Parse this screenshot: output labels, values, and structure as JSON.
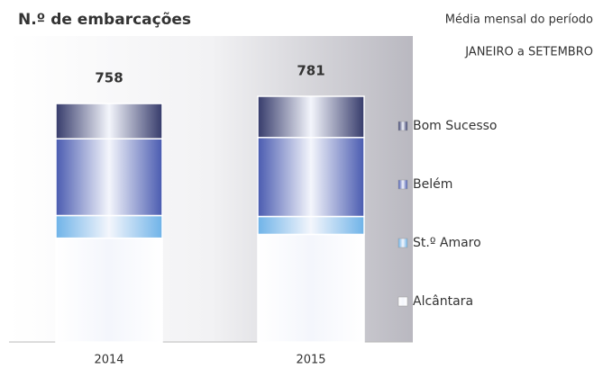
{
  "chart_data": {
    "type": "stacked_bar",
    "title": "N.º de embarcações",
    "subtitle": "Média mensal do período",
    "period": "JANEIRO a SETEMBRO",
    "categories": [
      "2014",
      "2015"
    ],
    "totals": [
      758,
      781
    ],
    "series": [
      {
        "name": "Alcântara",
        "color": "#ffffff",
        "values": [
          330,
          342
        ]
      },
      {
        "name": "St.º Amaro",
        "color": "#6fb3e8",
        "values": [
          72,
          57
        ]
      },
      {
        "name": "Belém",
        "color": "#4a5bb0",
        "values": [
          244,
          251
        ]
      },
      {
        "name": "Bom Sucesso",
        "color": "#363b6b",
        "values": [
          112,
          131
        ]
      }
    ]
  }
}
